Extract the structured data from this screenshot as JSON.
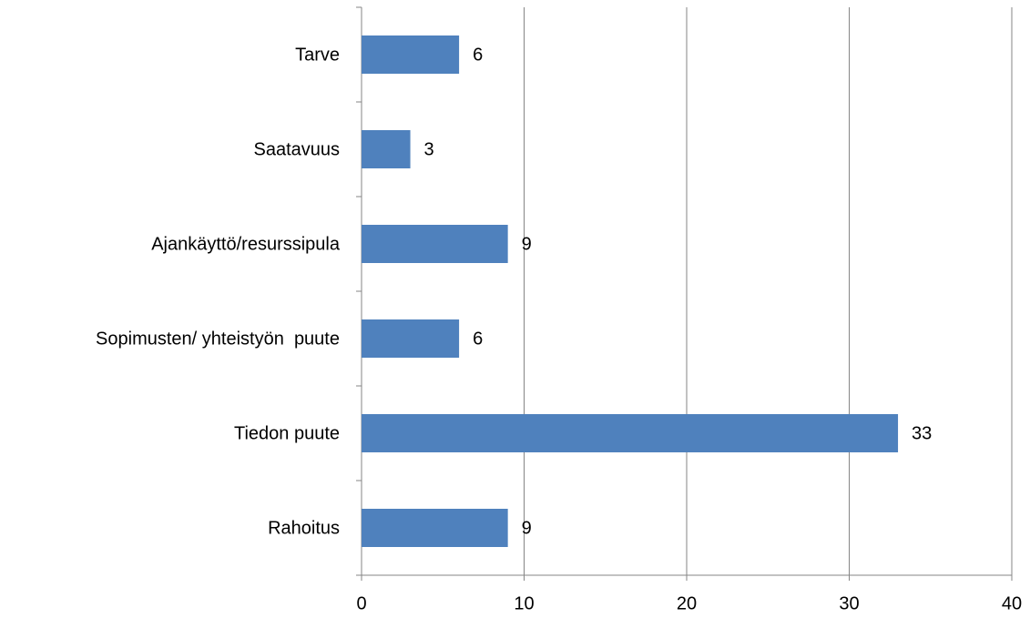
{
  "chart_data": {
    "type": "bar",
    "orientation": "horizontal",
    "categories": [
      "Tarve",
      "Saatavuus",
      "Ajankäyttö/resurssipula",
      "Sopimusten/ yhteistyön  puute",
      "Tiedon puute",
      "Rahoitus"
    ],
    "values": [
      6,
      3,
      9,
      6,
      33,
      9
    ],
    "color": "#4f81bd",
    "xlim": [
      0,
      40
    ],
    "xticks": [
      0,
      10,
      20,
      30,
      40
    ],
    "grid": true
  }
}
